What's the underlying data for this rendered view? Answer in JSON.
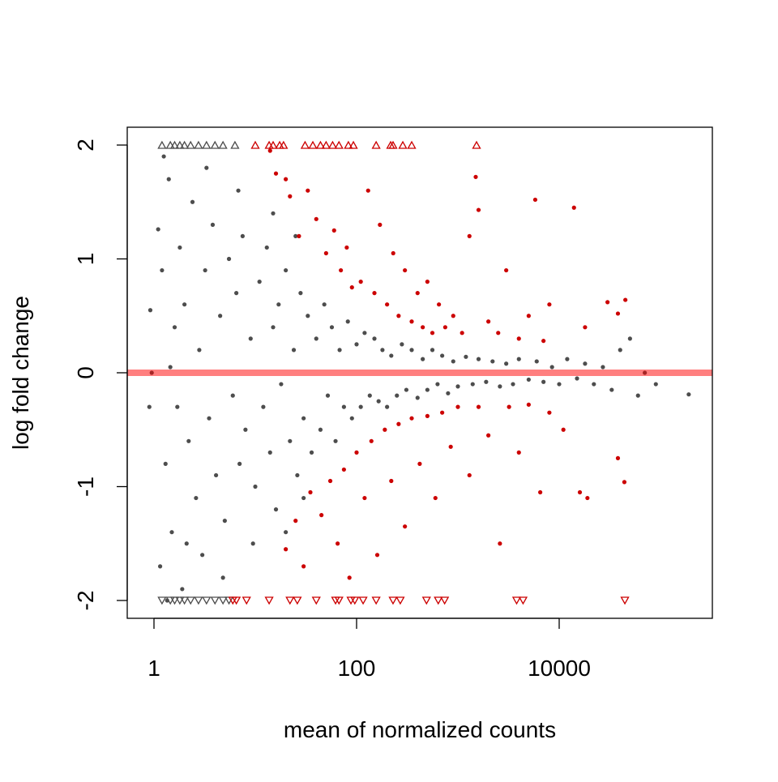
{
  "chart_data": {
    "type": "scatter",
    "title": "",
    "xlabel": "mean of normalized counts",
    "ylabel": "log fold change",
    "x_scale": "log",
    "xlim": [
      0.54,
      320000
    ],
    "ylim": [
      -2.16,
      2.16
    ],
    "x_ticks": [
      {
        "value": 1,
        "label": "1"
      },
      {
        "value": 100,
        "label": "100"
      },
      {
        "value": 10000,
        "label": "10000"
      }
    ],
    "y_ticks": [
      {
        "value": -2,
        "label": "-2"
      },
      {
        "value": -1,
        "label": "-1"
      },
      {
        "value": 0,
        "label": "0"
      },
      {
        "value": 1,
        "label": "1"
      },
      {
        "value": 2,
        "label": "2"
      }
    ],
    "grid": false,
    "reference_line": {
      "y": 0,
      "color": "#ff000080"
    },
    "colors": {
      "not_significant": "#4d4d4d",
      "significant": "#cc0000"
    },
    "series": [
      {
        "kind": "not_significant",
        "points": [
          [
            1.1,
            1.26
          ],
          [
            1.2,
            0.9
          ],
          [
            1.3,
            -0.8
          ],
          [
            1.4,
            1.7
          ],
          [
            1.5,
            -1.4
          ],
          [
            1.6,
            0.4
          ],
          [
            1.7,
            -0.3
          ],
          [
            1.8,
            1.1
          ],
          [
            1.9,
            -1.9
          ],
          [
            2.0,
            0.6
          ],
          [
            2.2,
            -0.6
          ],
          [
            2.4,
            1.5
          ],
          [
            2.6,
            -1.1
          ],
          [
            2.8,
            0.2
          ],
          [
            3.0,
            -1.6
          ],
          [
            3.2,
            0.9
          ],
          [
            3.5,
            -0.4
          ],
          [
            3.8,
            1.3
          ],
          [
            4.1,
            -0.9
          ],
          [
            4.5,
            0.5
          ],
          [
            5.0,
            -1.3
          ],
          [
            5.5,
            1.0
          ],
          [
            6.0,
            -0.2
          ],
          [
            6.5,
            0.7
          ],
          [
            7.0,
            -0.8
          ],
          [
            7.5,
            1.2
          ],
          [
            8.0,
            -0.5
          ],
          [
            9.0,
            0.3
          ],
          [
            10,
            -1.0
          ],
          [
            11,
            0.8
          ],
          [
            12,
            -0.3
          ],
          [
            13,
            1.1
          ],
          [
            14,
            -0.7
          ],
          [
            15,
            0.4
          ],
          [
            16,
            -1.2
          ],
          [
            17,
            0.6
          ],
          [
            18,
            -0.1
          ],
          [
            20,
            0.9
          ],
          [
            22,
            -0.6
          ],
          [
            24,
            0.2
          ],
          [
            26,
            -0.9
          ],
          [
            28,
            0.7
          ],
          [
            30,
            -0.4
          ],
          [
            33,
            0.5
          ],
          [
            36,
            -0.7
          ],
          [
            40,
            0.3
          ],
          [
            44,
            -0.5
          ],
          [
            48,
            0.6
          ],
          [
            52,
            -0.2
          ],
          [
            57,
            0.4
          ],
          [
            62,
            -0.6
          ],
          [
            68,
            0.2
          ],
          [
            75,
            -0.3
          ],
          [
            82,
            0.45
          ],
          [
            90,
            -0.4
          ],
          [
            100,
            0.25
          ],
          [
            110,
            -0.3
          ],
          [
            120,
            0.35
          ],
          [
            135,
            -0.2
          ],
          [
            150,
            0.3
          ],
          [
            165,
            -0.25
          ],
          [
            180,
            0.2
          ],
          [
            200,
            -0.3
          ],
          [
            220,
            0.15
          ],
          [
            250,
            -0.2
          ],
          [
            280,
            0.25
          ],
          [
            310,
            -0.15
          ],
          [
            350,
            0.2
          ],
          [
            400,
            -0.22
          ],
          [
            450,
            0.12
          ],
          [
            500,
            -0.15
          ],
          [
            560,
            0.2
          ],
          [
            630,
            -0.1
          ],
          [
            700,
            0.15
          ],
          [
            800,
            -0.18
          ],
          [
            900,
            0.1
          ],
          [
            1000,
            -0.12
          ],
          [
            1200,
            0.14
          ],
          [
            1400,
            -0.1
          ],
          [
            1600,
            0.12
          ],
          [
            1900,
            -0.08
          ],
          [
            2200,
            0.1
          ],
          [
            2600,
            -0.12
          ],
          [
            3000,
            0.08
          ],
          [
            3500,
            -0.1
          ],
          [
            4000,
            0.12
          ],
          [
            5000,
            -0.06
          ],
          [
            6000,
            0.1
          ],
          [
            7000,
            -0.08
          ],
          [
            8500,
            0.05
          ],
          [
            10000,
            -0.1
          ],
          [
            12000,
            0.12
          ],
          [
            15000,
            -0.05
          ],
          [
            18000,
            0.08
          ],
          [
            22000,
            -0.1
          ],
          [
            27000,
            0.05
          ],
          [
            33000,
            -0.15
          ],
          [
            40000,
            0.2
          ],
          [
            50000,
            0.3
          ],
          [
            60000,
            -0.2
          ],
          [
            70000,
            0.0
          ],
          [
            90000,
            -0.1
          ],
          [
            190000,
            -0.19
          ],
          [
            1.15,
            -1.7
          ],
          [
            1.25,
            1.9
          ],
          [
            1.35,
            -2.0
          ],
          [
            1.45,
            0.05
          ],
          [
            2.1,
            -1.5
          ],
          [
            3.3,
            1.8
          ],
          [
            4.8,
            -1.8
          ],
          [
            6.8,
            1.6
          ],
          [
            9.5,
            -1.5
          ],
          [
            15,
            1.4
          ],
          [
            20,
            -1.4
          ],
          [
            25,
            1.2
          ],
          [
            30,
            -1.1
          ],
          [
            0.95,
            0.0
          ],
          [
            0.9,
            -0.3
          ],
          [
            0.92,
            0.55
          ]
        ],
        "clipped_up": [
          1.2,
          1.45,
          1.6,
          1.8,
          2.0,
          2.3,
          2.75,
          3.3,
          4.0,
          4.8,
          6.3
        ],
        "clipped_down": [
          1.2,
          1.45,
          1.6,
          1.8,
          2.0,
          2.3,
          2.75,
          3.3,
          4.0,
          4.8,
          5.5
        ]
      },
      {
        "kind": "significant",
        "points": [
          [
            14,
            1.95
          ],
          [
            16,
            1.75
          ],
          [
            20,
            1.7
          ],
          [
            22,
            1.55
          ],
          [
            27,
            1.2
          ],
          [
            33,
            1.6
          ],
          [
            40,
            1.35
          ],
          [
            50,
            1.05
          ],
          [
            60,
            1.25
          ],
          [
            70,
            0.9
          ],
          [
            80,
            1.1
          ],
          [
            90,
            0.75
          ],
          [
            110,
            0.8
          ],
          [
            130,
            1.6
          ],
          [
            150,
            0.7
          ],
          [
            170,
            1.3
          ],
          [
            200,
            0.6
          ],
          [
            230,
            1.05
          ],
          [
            260,
            0.5
          ],
          [
            300,
            0.9
          ],
          [
            350,
            0.45
          ],
          [
            400,
            0.7
          ],
          [
            450,
            0.4
          ],
          [
            500,
            0.8
          ],
          [
            560,
            0.35
          ],
          [
            650,
            0.6
          ],
          [
            750,
            0.4
          ],
          [
            900,
            0.5
          ],
          [
            1100,
            0.35
          ],
          [
            1300,
            1.2
          ],
          [
            1500,
            1.72
          ],
          [
            1600,
            1.43
          ],
          [
            2000,
            0.45
          ],
          [
            2500,
            0.35
          ],
          [
            3000,
            0.9
          ],
          [
            4000,
            0.3
          ],
          [
            5000,
            0.5
          ],
          [
            5800,
            1.52
          ],
          [
            7000,
            0.28
          ],
          [
            8000,
            0.6
          ],
          [
            14000,
            1.45
          ],
          [
            18000,
            0.4
          ],
          [
            30000,
            0.62
          ],
          [
            38000,
            0.52
          ],
          [
            45000,
            0.64
          ],
          [
            20,
            -1.55
          ],
          [
            25,
            -1.3
          ],
          [
            30,
            -1.7
          ],
          [
            35,
            -1.05
          ],
          [
            45,
            -1.25
          ],
          [
            55,
            -0.95
          ],
          [
            65,
            -1.5
          ],
          [
            75,
            -0.85
          ],
          [
            85,
            -1.8
          ],
          [
            100,
            -0.7
          ],
          [
            120,
            -1.1
          ],
          [
            140,
            -0.6
          ],
          [
            160,
            -1.6
          ],
          [
            190,
            -0.5
          ],
          [
            220,
            -0.95
          ],
          [
            260,
            -0.45
          ],
          [
            300,
            -1.35
          ],
          [
            350,
            -0.4
          ],
          [
            420,
            -0.8
          ],
          [
            500,
            -0.38
          ],
          [
            600,
            -1.1
          ],
          [
            700,
            -0.35
          ],
          [
            850,
            -0.65
          ],
          [
            1000,
            -0.3
          ],
          [
            1300,
            -0.9
          ],
          [
            1600,
            -0.3
          ],
          [
            2000,
            -0.55
          ],
          [
            2600,
            -1.5
          ],
          [
            3200,
            -0.3
          ],
          [
            4000,
            -0.7
          ],
          [
            5000,
            -0.28
          ],
          [
            6500,
            -1.05
          ],
          [
            8000,
            -0.35
          ],
          [
            11000,
            -0.5
          ],
          [
            16000,
            -1.05
          ],
          [
            19000,
            -1.1
          ],
          [
            38000,
            -0.75
          ],
          [
            44000,
            -0.96
          ]
        ],
        "clipped_up": [
          10,
          13.7,
          15,
          17.4,
          19,
          31,
          37,
          44,
          50,
          58,
          67,
          83,
          93,
          156,
          217,
          229,
          286,
          350,
          1528
        ],
        "clipped_down": [
          6,
          6.5,
          8.2,
          13.7,
          22,
          26,
          40,
          62,
          67,
          88,
          96,
          116,
          156,
          229,
          270,
          490,
          640,
          740,
          3800,
          4400,
          44500
        ]
      }
    ]
  }
}
